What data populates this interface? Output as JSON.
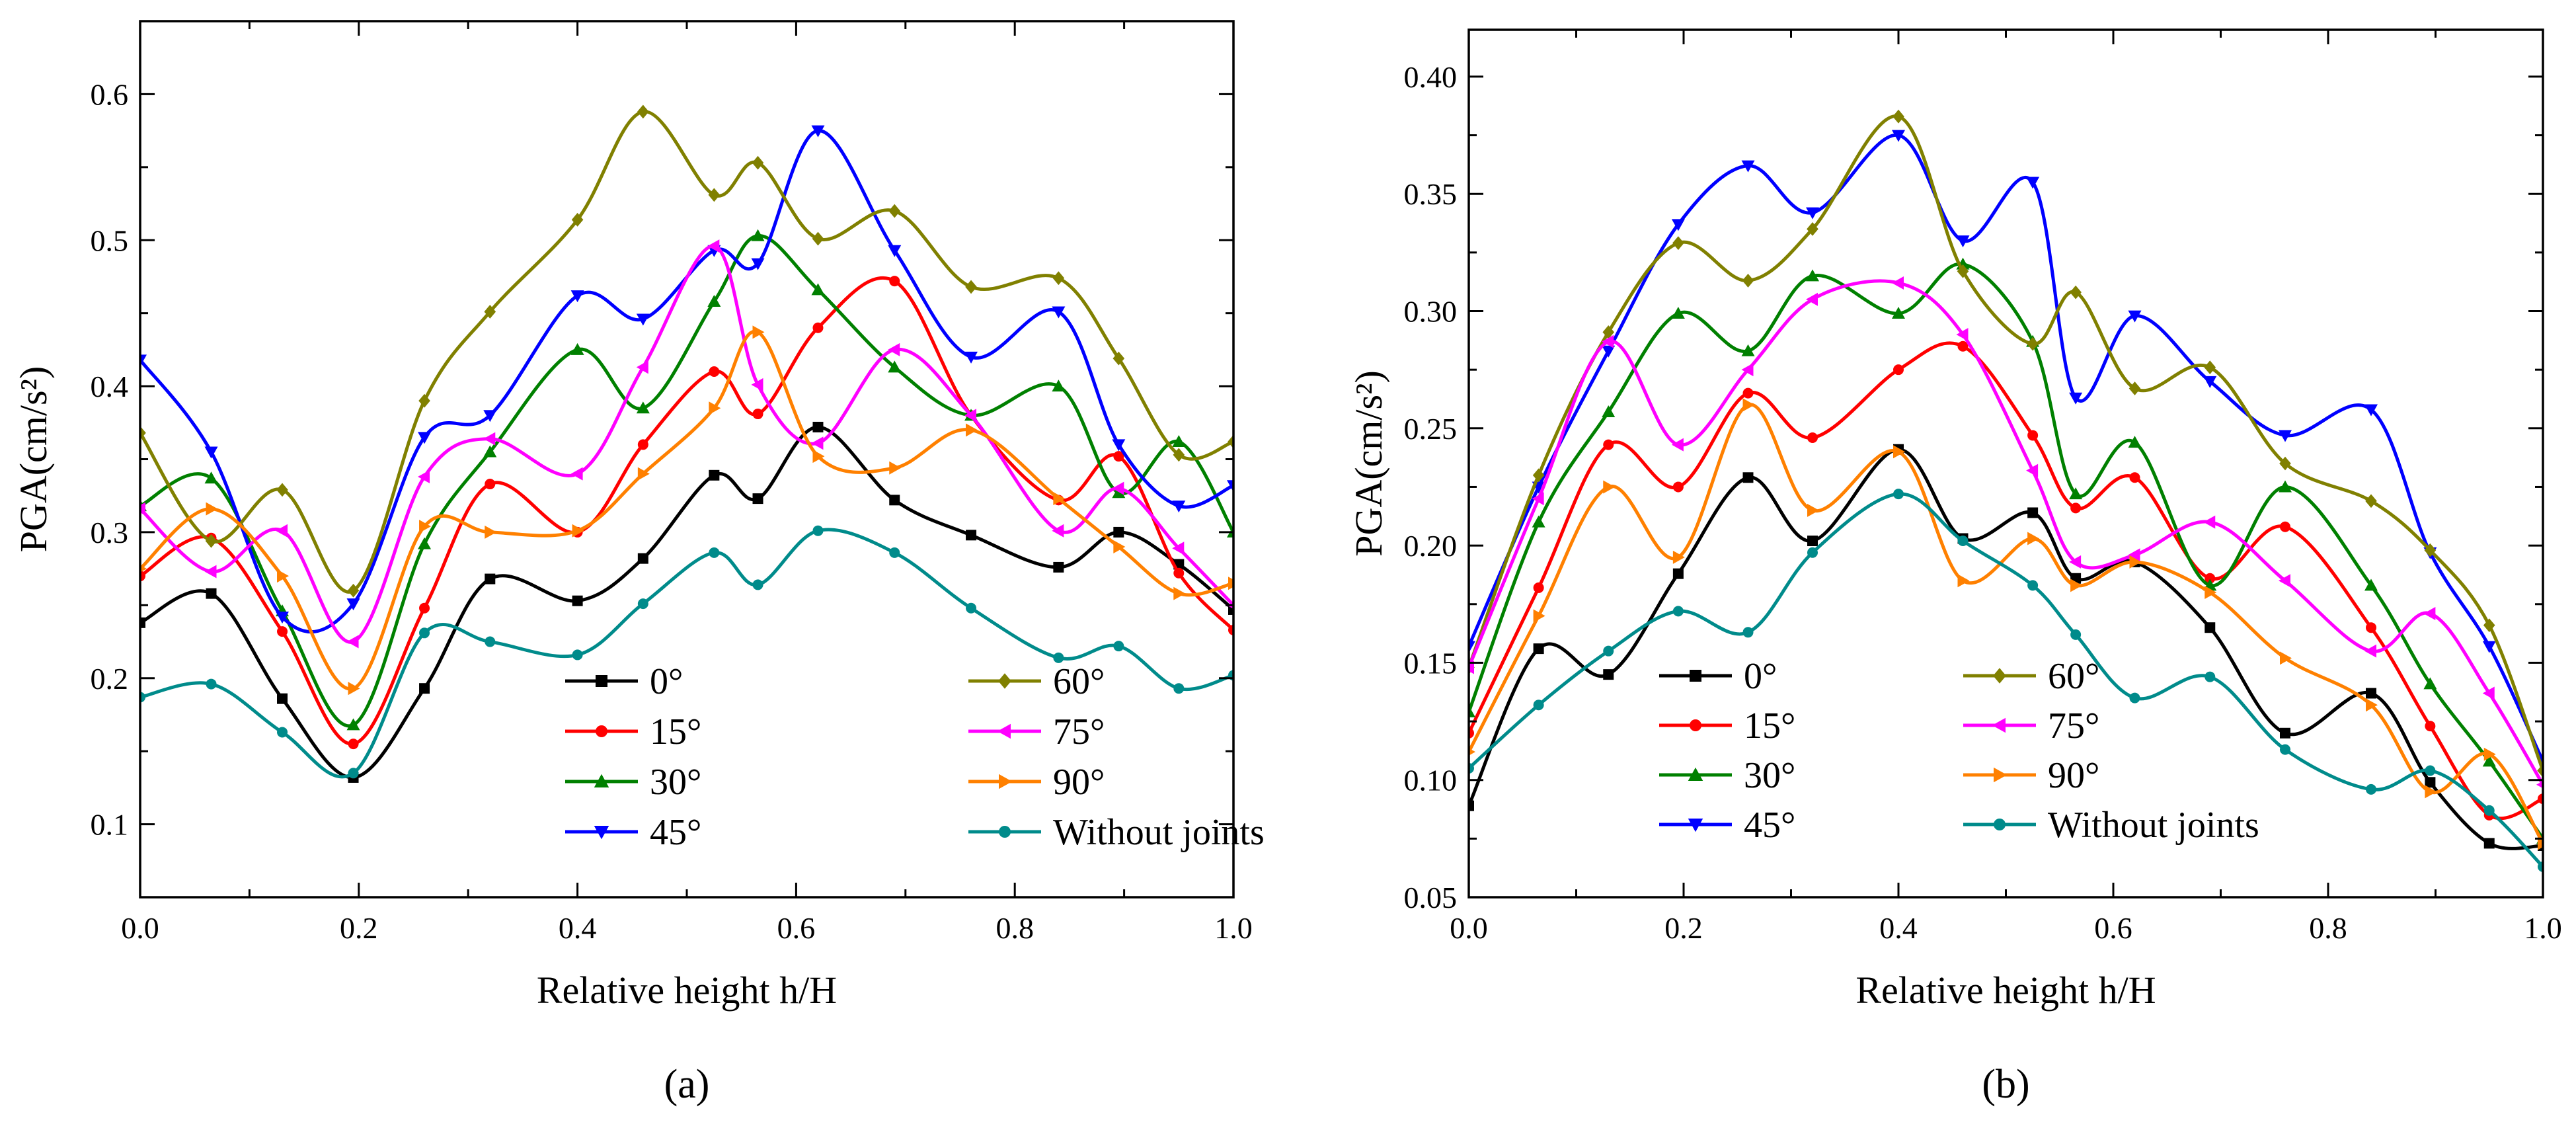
{
  "chart_data": [
    {
      "type": "line",
      "panel_label": "(a)",
      "xlabel": "Relative height h/H",
      "ylabel": "PGA(cm/s²)",
      "xlim": [
        0,
        1
      ],
      "ylim": [
        0.05,
        0.65
      ],
      "xticks": [
        0.0,
        0.2,
        0.4,
        0.6,
        0.8,
        1.0
      ],
      "xtick_labels": [
        "0.0",
        "0.2",
        "0.4",
        "0.6",
        "0.8",
        "1.0"
      ],
      "yticks": [
        0.1,
        0.2,
        0.3,
        0.4,
        0.5,
        0.6
      ],
      "ytick_labels": [
        "0.1",
        "0.2",
        "0.3",
        "0.4",
        "0.5",
        "0.6"
      ],
      "legend_position": "bottom-right",
      "grid": false,
      "x": [
        0.0,
        0.065,
        0.13,
        0.195,
        0.26,
        0.32,
        0.4,
        0.46,
        0.525,
        0.565,
        0.62,
        0.69,
        0.76,
        0.84,
        0.895,
        0.95,
        1.0
      ],
      "series": [
        {
          "name": "0°",
          "color": "#000000",
          "marker": "square",
          "values": [
            0.238,
            0.258,
            0.186,
            0.132,
            0.193,
            0.268,
            0.253,
            0.282,
            0.339,
            0.323,
            0.372,
            0.322,
            0.298,
            0.276,
            0.3,
            0.278,
            0.247
          ]
        },
        {
          "name": "15°",
          "color": "#ff0000",
          "marker": "circle",
          "values": [
            0.27,
            0.296,
            0.232,
            0.155,
            0.248,
            0.333,
            0.3,
            0.36,
            0.41,
            0.381,
            0.44,
            0.472,
            0.38,
            0.322,
            0.352,
            0.272,
            0.233
          ]
        },
        {
          "name": "30°",
          "color": "#008000",
          "marker": "triangle-up",
          "values": [
            0.318,
            0.337,
            0.246,
            0.168,
            0.292,
            0.355,
            0.425,
            0.385,
            0.458,
            0.503,
            0.466,
            0.413,
            0.38,
            0.4,
            0.327,
            0.362,
            0.3
          ]
        },
        {
          "name": "45°",
          "color": "#0000ff",
          "marker": "triangle-down",
          "values": [
            0.418,
            0.355,
            0.242,
            0.251,
            0.365,
            0.38,
            0.462,
            0.446,
            0.493,
            0.484,
            0.575,
            0.493,
            0.42,
            0.451,
            0.36,
            0.318,
            0.332
          ]
        },
        {
          "name": "60°",
          "color": "#808000",
          "marker": "diamond",
          "values": [
            0.368,
            0.294,
            0.329,
            0.26,
            0.39,
            0.451,
            0.514,
            0.588,
            0.531,
            0.553,
            0.501,
            0.52,
            0.468,
            0.474,
            0.419,
            0.353,
            0.362
          ]
        },
        {
          "name": "75°",
          "color": "#ff00ff",
          "marker": "triangle-left",
          "values": [
            0.316,
            0.273,
            0.301,
            0.225,
            0.338,
            0.364,
            0.34,
            0.413,
            0.496,
            0.401,
            0.361,
            0.425,
            0.38,
            0.301,
            0.33,
            0.289,
            0.25
          ]
        },
        {
          "name": "90°",
          "color": "#ff8000",
          "marker": "triangle-right",
          "values": [
            0.275,
            0.316,
            0.27,
            0.193,
            0.304,
            0.3,
            0.301,
            0.34,
            0.385,
            0.437,
            0.352,
            0.344,
            0.37,
            0.323,
            0.29,
            0.258,
            0.265
          ]
        },
        {
          "name": "Without joints",
          "color": "#008b8b",
          "marker": "circle",
          "values": [
            0.187,
            0.196,
            0.163,
            0.135,
            0.231,
            0.225,
            0.216,
            0.251,
            0.286,
            0.264,
            0.301,
            0.286,
            0.248,
            0.214,
            0.222,
            0.193,
            0.202
          ]
        }
      ]
    },
    {
      "type": "line",
      "panel_label": "(b)",
      "xlabel": "Relative height h/H",
      "ylabel": "PGA(cm/s²)",
      "xlim": [
        0,
        1
      ],
      "ylim": [
        0.05,
        0.42
      ],
      "xticks": [
        0.0,
        0.2,
        0.4,
        0.6,
        0.8,
        1.0
      ],
      "xtick_labels": [
        "0.0",
        "0.2",
        "0.4",
        "0.6",
        "0.8",
        "1.0"
      ],
      "yticks": [
        0.05,
        0.1,
        0.15,
        0.2,
        0.25,
        0.3,
        0.35,
        0.4
      ],
      "ytick_labels": [
        "0.05",
        "0.10",
        "0.15",
        "0.20",
        "0.25",
        "0.30",
        "0.35",
        "0.40"
      ],
      "legend_position": "bottom-left",
      "grid": false,
      "x": [
        0.0,
        0.065,
        0.13,
        0.195,
        0.26,
        0.32,
        0.4,
        0.46,
        0.525,
        0.565,
        0.62,
        0.69,
        0.76,
        0.84,
        0.895,
        0.95,
        1.0
      ],
      "series": [
        {
          "name": "0°",
          "color": "#000000",
          "marker": "square",
          "values": [
            0.089,
            0.156,
            0.145,
            0.188,
            0.229,
            0.202,
            0.241,
            0.203,
            0.214,
            0.186,
            0.193,
            0.165,
            0.12,
            0.137,
            0.099,
            0.073,
            0.072
          ]
        },
        {
          "name": "15°",
          "color": "#ff0000",
          "marker": "circle",
          "values": [
            0.12,
            0.182,
            0.243,
            0.225,
            0.265,
            0.246,
            0.275,
            0.285,
            0.247,
            0.216,
            0.229,
            0.186,
            0.208,
            0.165,
            0.123,
            0.085,
            0.092
          ]
        },
        {
          "name": "30°",
          "color": "#008000",
          "marker": "triangle-up",
          "values": [
            0.129,
            0.21,
            0.257,
            0.299,
            0.283,
            0.315,
            0.299,
            0.32,
            0.287,
            0.222,
            0.244,
            0.183,
            0.225,
            0.183,
            0.141,
            0.108,
            0.075
          ]
        },
        {
          "name": "45°",
          "color": "#0000ff",
          "marker": "triangle-down",
          "values": [
            0.157,
            0.225,
            0.283,
            0.337,
            0.362,
            0.342,
            0.375,
            0.33,
            0.355,
            0.263,
            0.298,
            0.27,
            0.247,
            0.258,
            0.197,
            0.157,
            0.108
          ]
        },
        {
          "name": "60°",
          "color": "#808000",
          "marker": "diamond",
          "values": [
            0.148,
            0.23,
            0.291,
            0.329,
            0.313,
            0.335,
            0.383,
            0.317,
            0.286,
            0.308,
            0.267,
            0.276,
            0.235,
            0.219,
            0.198,
            0.166,
            0.104
          ]
        },
        {
          "name": "75°",
          "color": "#ff00ff",
          "marker": "triangle-left",
          "values": [
            0.148,
            0.22,
            0.287,
            0.243,
            0.275,
            0.305,
            0.312,
            0.29,
            0.232,
            0.193,
            0.196,
            0.21,
            0.185,
            0.155,
            0.171,
            0.137,
            0.098
          ]
        },
        {
          "name": "90°",
          "color": "#ff8000",
          "marker": "triangle-right",
          "values": [
            0.112,
            0.17,
            0.225,
            0.195,
            0.26,
            0.215,
            0.24,
            0.185,
            0.203,
            0.183,
            0.193,
            0.18,
            0.152,
            0.132,
            0.095,
            0.111,
            0.073
          ]
        },
        {
          "name": "Without joints",
          "color": "#008b8b",
          "marker": "circle",
          "values": [
            0.105,
            0.132,
            0.155,
            0.172,
            0.163,
            0.197,
            0.222,
            0.202,
            0.183,
            0.162,
            0.135,
            0.144,
            0.113,
            0.096,
            0.104,
            0.087,
            0.063
          ]
        }
      ]
    }
  ]
}
